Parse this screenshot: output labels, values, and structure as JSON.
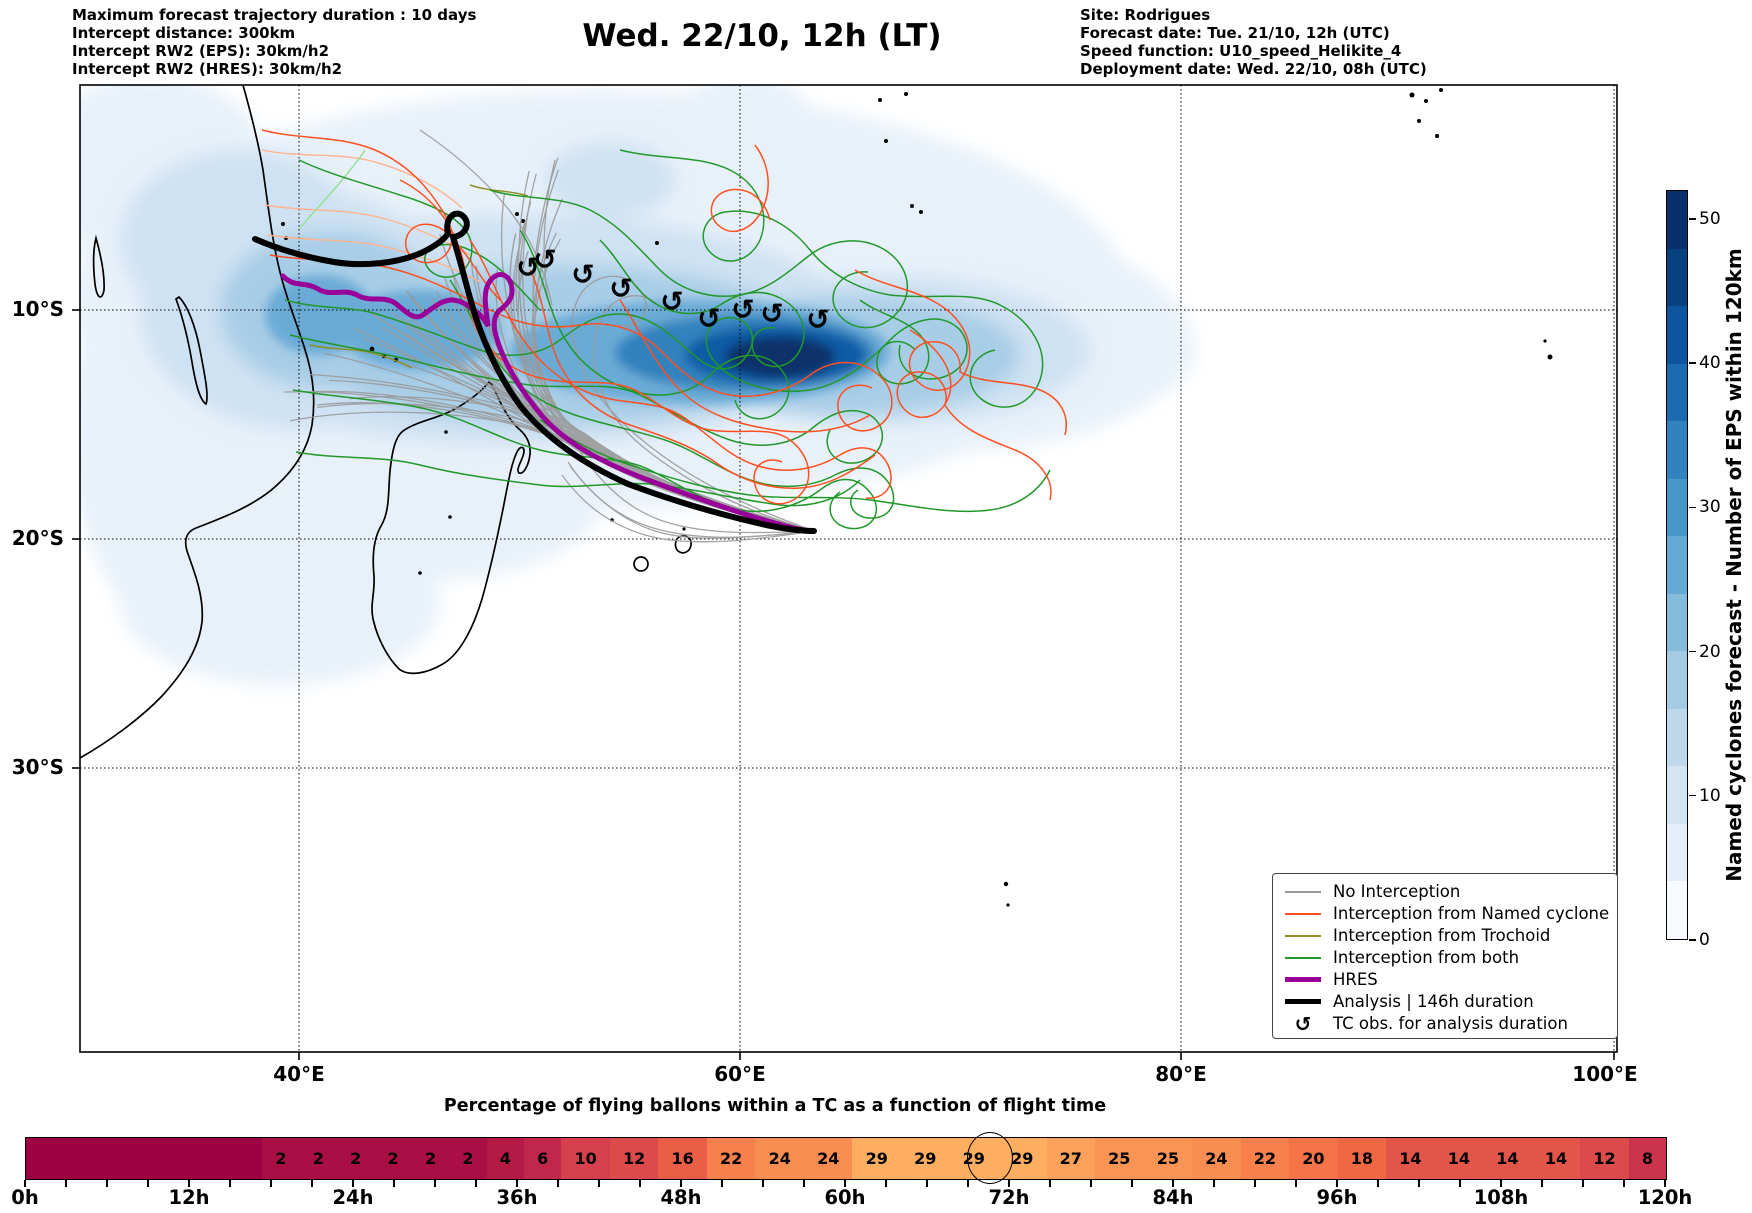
{
  "header": {
    "left": [
      "Maximum forecast trajectory duration : 10 days",
      "Intercept distance: 300km",
      "Intercept RW2 (EPS):  30km/h2",
      "Intercept RW2 (HRES): 30km/h2"
    ],
    "title": "Wed. 22/10, 12h (LT)",
    "right": [
      "Site: Rodrigues",
      "Forecast date: Tue. 21/10, 12h (UTC)",
      "Speed function: U10_speed_Helikite_4",
      "Deployment date: Wed. 22/10, 08h (UTC)"
    ]
  },
  "map": {
    "lat_ticks": [
      "10°S",
      "20°S",
      "30°S"
    ],
    "lon_ticks": [
      "40°E",
      "60°E",
      "80°E",
      "100°E"
    ],
    "tc_symbol": "↺",
    "colors": {
      "no_interception": "#9a9a9a",
      "named_cyclone": "#ff4f21",
      "trochoid": "#8f8f25",
      "both": "#22982a",
      "hres": "#990099",
      "analysis": "#000000",
      "coast": "#000000",
      "salmon": "#ffb28c",
      "lightgreen": "#98e098"
    },
    "legend_items": [
      {
        "label": "No Interception",
        "color": "#9a9a9a",
        "lw": 2,
        "type": "line"
      },
      {
        "label": "Interception from Named cyclone",
        "color": "#ff4f21",
        "lw": 2,
        "type": "line"
      },
      {
        "label": "Interception from Trochoid",
        "color": "#8f8f25",
        "lw": 2,
        "type": "line"
      },
      {
        "label": "Interception from both",
        "color": "#22982a",
        "lw": 2,
        "type": "line"
      },
      {
        "label": "HRES",
        "color": "#990099",
        "lw": 5,
        "type": "line"
      },
      {
        "label": "Analysis | 146h duration",
        "color": "#000000",
        "lw": 5,
        "type": "line"
      },
      {
        "label": "TC obs. for analysis duration",
        "color": "#000000",
        "type": "marker"
      }
    ]
  },
  "colorbar": {
    "label": "Named cyclones forecast - Number of EPS within 120km",
    "ticks": [
      0,
      10,
      20,
      30,
      40,
      50
    ],
    "vmin": 0,
    "vmax": 52,
    "segment_colors_bottom_to_top": [
      "#f7fbff",
      "#e3eef9",
      "#d3e4f3",
      "#bed8ec",
      "#a3cce3",
      "#85bcdb",
      "#65aad4",
      "#4897c9",
      "#3182be",
      "#1c6bb0",
      "#0d559f",
      "#08417f",
      "#08306b"
    ]
  },
  "bottom_bar": {
    "title": "Percentage of flying ballons within a TC as a function of flight time",
    "hours_per_segment": 3,
    "values": [
      0,
      0,
      0,
      0,
      0,
      0,
      0,
      0,
      0,
      2,
      2,
      2,
      2,
      2,
      2,
      4,
      6,
      10,
      12,
      16,
      22,
      24,
      24,
      29,
      29,
      29,
      29,
      27,
      25,
      25,
      24,
      22,
      20,
      18,
      14,
      14,
      14,
      14,
      12,
      8
    ],
    "circled_segment": 23,
    "hour_labels": [
      "0h",
      "12h",
      "24h",
      "36h",
      "48h",
      "60h",
      "72h",
      "84h",
      "96h",
      "108h",
      "120h"
    ],
    "color_stops": [
      [
        0,
        "#9e0142"
      ],
      [
        0.33,
        "#d53e4f"
      ],
      [
        0.66,
        "#f46d43"
      ],
      [
        1,
        "#fdae61"
      ]
    ],
    "value_max": 29
  },
  "chart_data": [
    {
      "type": "heatmap",
      "title": "Percentage of flying ballons within a TC as a function of flight time",
      "x_unit": "hours of flight time",
      "segment_width_hours": 3,
      "x_range_hours": [
        0,
        120
      ],
      "x_tick_labels": [
        "0h",
        "12h",
        "24h",
        "36h",
        "48h",
        "60h",
        "72h",
        "84h",
        "96h",
        "108h",
        "120h"
      ],
      "values_percent_per_3h_segment": [
        0,
        0,
        0,
        0,
        0,
        0,
        0,
        0,
        0,
        2,
        2,
        2,
        2,
        2,
        2,
        4,
        6,
        10,
        12,
        16,
        22,
        24,
        24,
        29,
        29,
        29,
        29,
        27,
        25,
        25,
        24,
        22,
        20,
        18,
        14,
        14,
        14,
        14,
        12,
        8
      ],
      "annotation": "maximum value 29 (segment 69h-72h) circled",
      "colormap": "dark red (low) to light orange (high)"
    },
    {
      "type": "map-trajectories",
      "title": "Wed. 22/10, 12h (LT)",
      "extent_lon_deg_east": [
        30,
        100
      ],
      "extent_lat_deg": [
        -42,
        0
      ],
      "gridline_lat_labels": [
        "10°S",
        "20°S",
        "30°S"
      ],
      "gridline_lon_labels": [
        "40°E",
        "60°E",
        "80°E",
        "100°E"
      ],
      "launch_site": "Rodrigues (~63.4E, 19.7S) - all trajectories converge there",
      "colorbar": {
        "label": "Named cyclones forecast - Number of EPS within 120km",
        "ticks": [
          0,
          10,
          20,
          30,
          40,
          50
        ],
        "range": [
          0,
          52
        ],
        "colormap": "Blues"
      },
      "legend_entries": [
        "No Interception",
        "Interception from Named cyclone",
        "Interception from Trochoid",
        "Interception from both",
        "HRES",
        "Analysis | 146h duration",
        "TC obs. for analysis duration"
      ],
      "tc_observation_marker_count": 9,
      "density_max_region": "dark blue EPS named-cyclone density core near 58-64E, 10-12S"
    }
  ]
}
